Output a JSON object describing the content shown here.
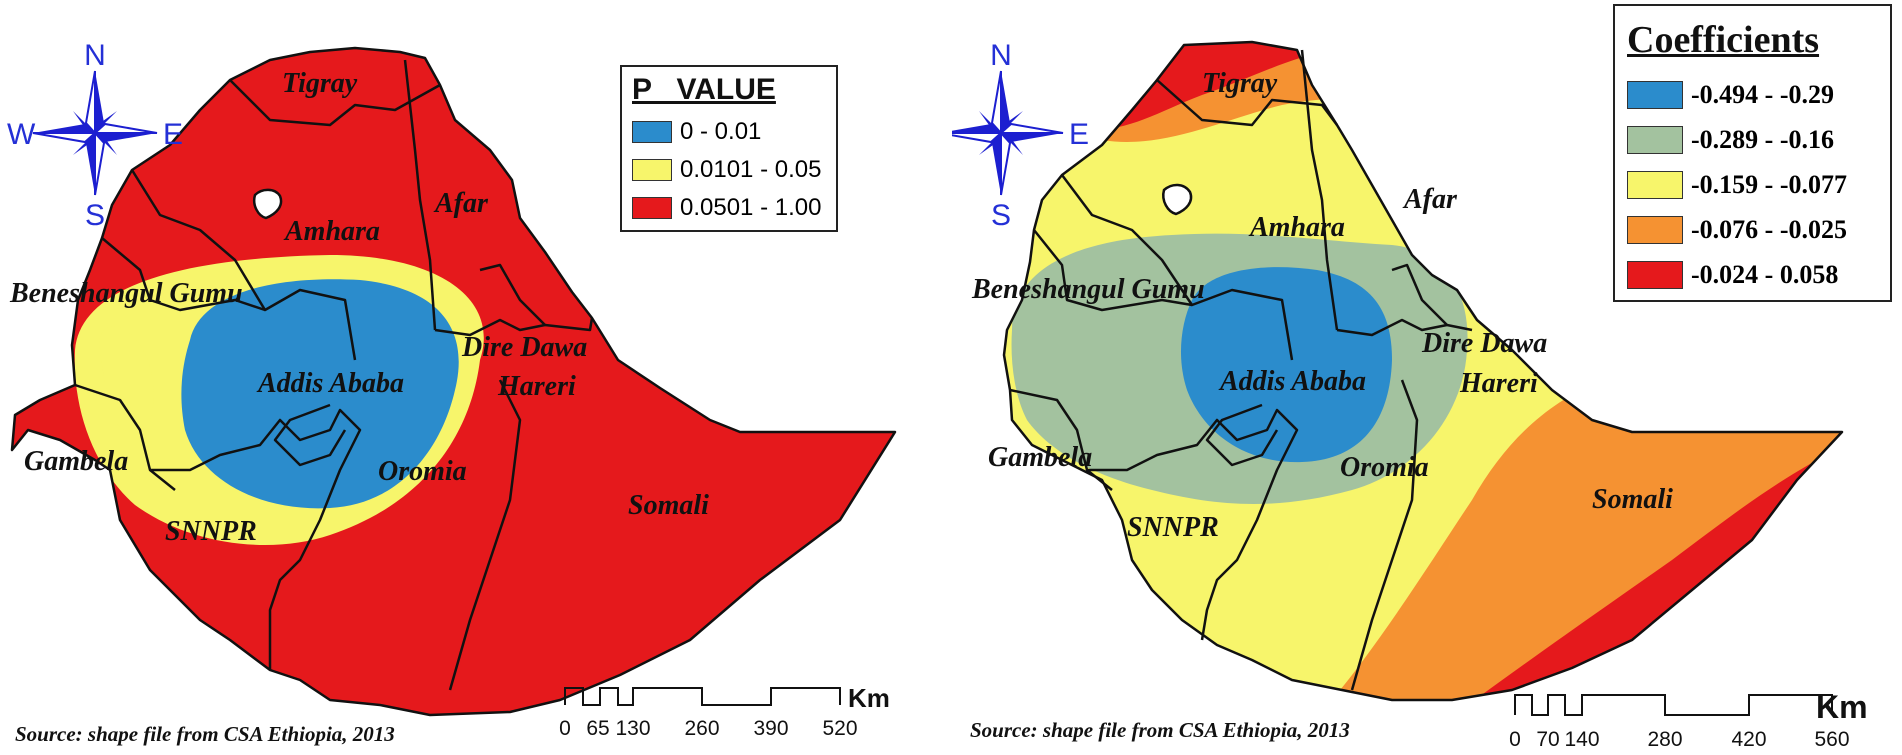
{
  "maps": [
    {
      "legend": {
        "title": "P   VALUE",
        "items": [
          {
            "label": "0 - 0.01",
            "color": "#2b8ccc"
          },
          {
            "label": "0.0101 - 0.05",
            "color": "#f7f56b"
          },
          {
            "label": "0.0501 - 1.00",
            "color": "#e5191c"
          }
        ]
      },
      "regions": [
        "Tigray",
        "Afar",
        "Amhara",
        "Beneshangul Gumu",
        "Addis Ababa",
        "Dire Dawa",
        "Hareri",
        "Oromia",
        "Gambela",
        "SNNPR",
        "Somali"
      ],
      "scale": {
        "ticks": [
          "0",
          "65",
          "130",
          "260",
          "390",
          "520"
        ],
        "unit": "Km"
      },
      "source": "Source: shape file from CSA Ethiopia, 2013"
    },
    {
      "legend": {
        "title": "Coefficients",
        "items": [
          {
            "label": "-0.494 - -0.29",
            "color": "#2b8ccc"
          },
          {
            "label": "-0.289 - -0.16",
            "color": "#a3c29f"
          },
          {
            "label": "-0.159 - -0.077",
            "color": "#f7f56b"
          },
          {
            "label": "-0.076 - -0.025",
            "color": "#f59232"
          },
          {
            "label": "-0.024 - 0.058",
            "color": "#e5191c"
          }
        ]
      },
      "regions": [
        "Tigray",
        "Afar",
        "Amhara",
        "Beneshangul Gumu",
        "Addis Ababa",
        "Dire Dawa",
        "Hareri",
        "Oromia",
        "Gambela",
        "SNNPR",
        "Somali"
      ],
      "scale": {
        "ticks": [
          "0",
          "70",
          "140",
          "280",
          "420",
          "560"
        ],
        "unit": "Km"
      },
      "source": "Source: shape file from CSA Ethiopia, 2013"
    }
  ],
  "compass": {
    "north": "N",
    "south": "S",
    "east": "E",
    "west": "W",
    "color": "#1c1fd0"
  }
}
